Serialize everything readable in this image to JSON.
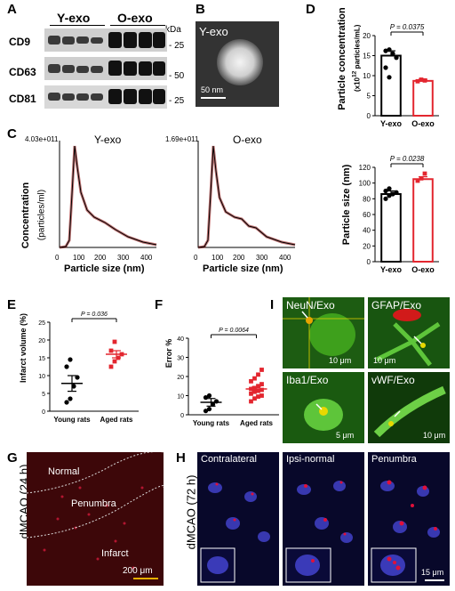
{
  "panels": {
    "A": {
      "label": "A",
      "groups": [
        "Y-exo",
        "O-exo"
      ],
      "unit": "kDa",
      "rows": [
        {
          "name": "CD9",
          "mw": "25"
        },
        {
          "name": "CD63",
          "mw": "50"
        },
        {
          "name": "CD81",
          "mw": "25"
        }
      ]
    },
    "B": {
      "label": "B",
      "title": "Y-exo",
      "scale": "50 nm"
    },
    "C": {
      "label": "C",
      "ylabel": "Concentration",
      "ylabel2": "(particles/ml)",
      "xlabel": "Particle size (nm)",
      "left": {
        "title": "Y-exo",
        "max": "4.03e+011"
      },
      "right": {
        "title": "O-exo",
        "max": "1.69e+011"
      },
      "ticks": [
        "0",
        "100",
        "200",
        "300",
        "400"
      ]
    },
    "D": {
      "label": "D",
      "top": {
        "ylabel": "Particle concentration",
        "yunit_pre": "(x10",
        "yunit_sup": "12",
        "yunit_post": " particles/mL)",
        "p": "P = 0.0375",
        "yticks": [
          "0",
          "5",
          "10",
          "15",
          "20"
        ],
        "categories": [
          "Y-exo",
          "O-exo"
        ]
      },
      "bottom": {
        "ylabel": "Particle size (nm)",
        "p": "P = 0.0238",
        "yticks": [
          "0",
          "20",
          "40",
          "60",
          "80",
          "100",
          "120"
        ],
        "categories": [
          "Y-exo",
          "O-exo"
        ]
      }
    },
    "E": {
      "label": "E",
      "ylabel": "Infarct volume (%)",
      "p": "P = 0.036",
      "yticks": [
        "0",
        "5",
        "10",
        "15",
        "20",
        "25"
      ],
      "categories": [
        "Young rats",
        "Aged rats"
      ]
    },
    "F": {
      "label": "F",
      "ylabel": "Error %",
      "p": "P = 0.0064",
      "yticks": [
        "0",
        "10",
        "20",
        "30",
        "40"
      ],
      "categories": [
        "Young rats",
        "Aged rats"
      ]
    },
    "G": {
      "label": "G",
      "side": "dMCAO (24 h)",
      "regions": [
        "Normal",
        "Penumbra",
        "Infarct"
      ],
      "scale": "200 μm"
    },
    "H": {
      "label": "H",
      "side": "dMCAO (72 h)",
      "regions": [
        "Contralateral",
        "Ipsi-normal",
        "Penumbra"
      ],
      "scale": "15 μm"
    },
    "I": {
      "label": "I",
      "tiles": [
        {
          "marker": "NeuN",
          "exo": "/Exo",
          "scale": "10 μm"
        },
        {
          "marker": "GFAP",
          "exo": "/Exo",
          "scale": "10 μm"
        },
        {
          "marker": "Iba1",
          "exo": "/Exo",
          "scale": "5 μm"
        },
        {
          "marker": "vWF",
          "exo": "/Exo",
          "scale": "10 μm"
        }
      ]
    }
  },
  "chart_data": [
    {
      "type": "bar",
      "ylabel": "Particle concentration",
      "categories": [
        "Y-exo",
        "O-exo"
      ],
      "values": [
        15.0,
        8.7
      ],
      "errors": [
        1.2,
        0.4
      ],
      "points": [
        [
          16.2,
          16.5,
          15.5,
          14.5,
          12.0,
          9.6
        ],
        [
          8.6,
          9.0,
          8.8
        ]
      ],
      "ylim": [
        0,
        20
      ],
      "annotation": "P = 0.0375"
    },
    {
      "type": "bar",
      "ylabel": "Particle size (nm)",
      "categories": [
        "Y-exo",
        "O-exo"
      ],
      "values": [
        86,
        105
      ],
      "errors": [
        4,
        3
      ],
      "points": [
        [
          80,
          84,
          86,
          88,
          90,
          93
        ],
        [
          103,
          106,
          112
        ]
      ],
      "ylim": [
        0,
        120
      ],
      "annotation": "P = 0.0238"
    },
    {
      "type": "scatter",
      "ylabel": "Infarct volume (%)",
      "categories": [
        "Young rats",
        "Aged rats"
      ],
      "means": [
        7.8,
        16.0
      ],
      "errors": [
        2.2,
        1.0
      ],
      "points": [
        [
          2.5,
          3.5,
          7.0,
          9.5,
          12.5,
          14.5
        ],
        [
          12.5,
          14.0,
          15.0,
          16.0,
          17.0,
          19.5
        ]
      ],
      "ylim": [
        0,
        25
      ],
      "annotation": "P = 0.036"
    },
    {
      "type": "scatter",
      "ylabel": "Error %",
      "categories": [
        "Young rats",
        "Aged rats"
      ],
      "means": [
        6.5,
        13.5
      ],
      "errors": [
        2.0,
        1.2
      ],
      "points": [
        [
          2.0,
          3.0,
          5.5,
          7.0,
          9.0,
          10.0
        ],
        [
          7.0,
          8.5,
          9.5,
          10.0,
          11.0,
          12.0,
          12.5,
          13.0,
          13.5,
          14.0,
          15.0,
          16.0,
          17.5,
          19.0,
          21.0,
          23.5
        ]
      ],
      "ylim": [
        0,
        40
      ],
      "annotation": "P = 0.0064"
    }
  ]
}
